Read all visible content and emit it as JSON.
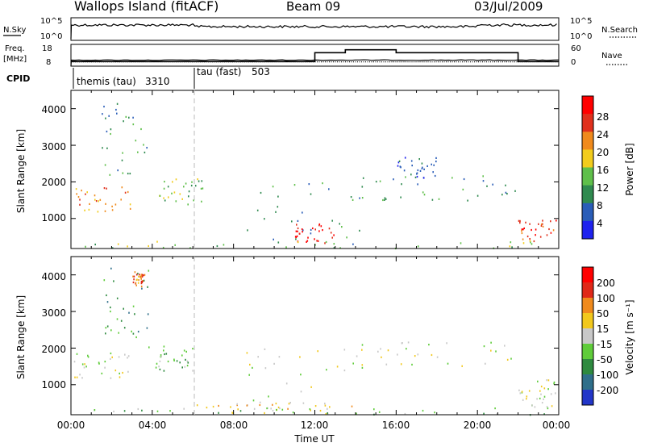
{
  "header": {
    "station": "Wallops Island (fitACF)",
    "beam": "Beam 09",
    "date": "03/Jul/2009"
  },
  "status_panels": {
    "nsky_label": "N.Sky",
    "nsearch_label": "N.Search",
    "noise_left_ticks": [
      "10^5",
      "10^0"
    ],
    "noise_right_ticks": [
      "10^5",
      "10^0"
    ],
    "freq_label": "Freq.",
    "freq_unit": "[MHz]",
    "freq_ticks": [
      "18",
      "8"
    ],
    "nave_label": "Nave",
    "nave_ticks": [
      "60",
      "0"
    ],
    "cpid_label": "CPID",
    "cpid_modes": [
      {
        "name": "themis (tau)",
        "id": "3310",
        "start_hour": 0
      },
      {
        "name": "tau (fast)",
        "id": "503",
        "start_hour": 6
      }
    ],
    "freq_mhz": 10.5,
    "nave_series": {
      "hours": [
        0,
        12,
        13.5,
        16,
        22,
        24
      ],
      "values": [
        10,
        40,
        50,
        40,
        10,
        10
      ]
    }
  },
  "chart_data": [
    {
      "type": "heatmap",
      "panel": "Power",
      "ylabel": "Slant Range [km]",
      "y_ticks": [
        "1000",
        "2000",
        "3000",
        "4000"
      ],
      "ylim": [
        180,
        4500
      ],
      "xlim": [
        0,
        24
      ],
      "colorbar_label": "Power [dB]",
      "colorbar_ticks": [
        "4",
        "8",
        "12",
        "16",
        "20",
        "24",
        "28"
      ],
      "colorbar_colors": [
        "#1e22ee",
        "#2a5db8",
        "#2f8a4f",
        "#5fbf4a",
        "#f2cc1c",
        "#f08a1c",
        "#e0301c",
        "#ff0000"
      ],
      "regions": [
        {
          "x": [
            0.1,
            3.0
          ],
          "y": [
            1200,
            1900
          ],
          "level": 5
        },
        {
          "x": [
            1.5,
            3.8
          ],
          "y": [
            2200,
            4200
          ],
          "level": 2
        },
        {
          "x": [
            3.8,
            6.5
          ],
          "y": [
            1400,
            2100
          ],
          "level": 3
        },
        {
          "x": [
            8.5,
            14.5
          ],
          "y": [
            300,
            2100
          ],
          "level": 2
        },
        {
          "x": [
            11.0,
            13.0
          ],
          "y": [
            350,
            900
          ],
          "level": 7
        },
        {
          "x": [
            14.0,
            22.0
          ],
          "y": [
            1500,
            2200
          ],
          "level": 2
        },
        {
          "x": [
            16.0,
            18.0
          ],
          "y": [
            2100,
            2700
          ],
          "level": 1
        },
        {
          "x": [
            22.0,
            23.9
          ],
          "y": [
            400,
            1000
          ],
          "level": 6
        },
        {
          "x": [
            0.5,
            23.5
          ],
          "y": [
            200,
            420
          ],
          "level": 3
        }
      ]
    },
    {
      "type": "heatmap",
      "panel": "Velocity",
      "ylabel": "Slant Range [km]",
      "y_ticks": [
        "1000",
        "2000",
        "3000",
        "4000"
      ],
      "ylim": [
        180,
        4500
      ],
      "xlim": [
        0,
        24
      ],
      "xlabel": "Time UT",
      "x_ticks": [
        "00:00",
        "04:00",
        "08:00",
        "12:00",
        "16:00",
        "20:00",
        "00:00"
      ],
      "colorbar_label": "Velocity [m s⁻¹]",
      "colorbar_ticks": [
        "200",
        "100",
        "50",
        "15",
        "-15",
        "-50",
        "-100",
        "-200"
      ],
      "colorbar_colors": [
        "#2236c8",
        "#2f6f8a",
        "#2e8a3f",
        "#5fcc3a",
        "#c8c8c8",
        "#f2c81c",
        "#f08a1c",
        "#e02818",
        "#ff0000"
      ],
      "regions": [
        {
          "x": [
            0.1,
            3.0
          ],
          "y": [
            1200,
            1900
          ],
          "level": 4
        },
        {
          "x": [
            1.5,
            3.8
          ],
          "y": [
            2200,
            4200
          ],
          "level": 2
        },
        {
          "x": [
            3.0,
            3.6
          ],
          "y": [
            3700,
            4100
          ],
          "level": 6
        },
        {
          "x": [
            3.8,
            6.0
          ],
          "y": [
            1400,
            2100
          ],
          "level": 3
        },
        {
          "x": [
            8.5,
            14.5
          ],
          "y": [
            300,
            2000
          ],
          "level": 4
        },
        {
          "x": [
            14.0,
            22.0
          ],
          "y": [
            1500,
            2200
          ],
          "level": 4
        },
        {
          "x": [
            22.0,
            23.9
          ],
          "y": [
            400,
            1200
          ],
          "level": 4
        },
        {
          "x": [
            6.0,
            14.0
          ],
          "y": [
            220,
            500
          ],
          "level": 5
        },
        {
          "x": [
            0.5,
            23.5
          ],
          "y": [
            200,
            400
          ],
          "level": 3
        }
      ]
    }
  ]
}
